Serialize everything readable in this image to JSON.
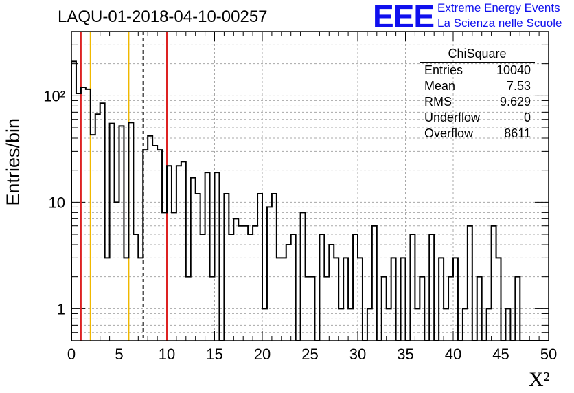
{
  "header": {
    "title": "LAQU-01-2018-04-10-00257",
    "logo_text": "EEE",
    "logo_line1": "Extreme Energy Events",
    "logo_line2": "La Scienza nelle Scuole"
  },
  "stats_box": {
    "name": "ChiSquare",
    "rows": [
      {
        "label": "Entries",
        "value": "10040"
      },
      {
        "label": "Mean",
        "value": "7.53"
      },
      {
        "label": "RMS",
        "value": "9.629"
      },
      {
        "label": "Underflow",
        "value": "0"
      },
      {
        "label": "Overflow",
        "value": "8611"
      }
    ]
  },
  "colors": {
    "histogram": "#000000",
    "red_line": "#dd2222",
    "yellow_line": "#f0b800",
    "dashed_line": "#000000",
    "logo": "#1010ee"
  },
  "chart_data": {
    "type": "bar",
    "histogram": "step",
    "title": "LAQU-01-2018-04-10-00257",
    "xlabel": "X²",
    "ylabel": "Entries/bin",
    "xlim": [
      0,
      50
    ],
    "ylim": [
      0.5,
      400
    ],
    "y_scale": "log",
    "grid": true,
    "bin_width": 0.5,
    "x_ticks": [
      0,
      5,
      10,
      15,
      20,
      25,
      30,
      35,
      40,
      45,
      50
    ],
    "x_tick_labels": [
      "0",
      "5",
      "10",
      "15",
      "20",
      "25",
      "30",
      "35",
      "40",
      "45",
      "50"
    ],
    "y_ticks": [
      1,
      10,
      100
    ],
    "y_tick_labels": [
      "1",
      "10",
      "10²"
    ],
    "values": [
      210,
      105,
      120,
      115,
      43,
      67,
      85,
      3,
      55,
      10,
      52,
      3,
      56,
      5,
      3,
      31,
      42,
      34,
      31,
      8,
      22,
      8,
      22,
      24,
      2,
      17,
      12,
      5,
      19,
      2,
      19,
      0,
      12,
      5,
      7,
      6,
      6,
      5,
      6,
      12,
      1,
      9,
      12,
      3,
      3,
      4,
      5,
      0,
      8,
      2,
      2,
      0,
      5,
      2,
      4,
      3,
      1,
      3,
      1,
      5,
      3,
      0,
      1,
      6,
      0,
      2,
      1,
      3,
      0,
      3,
      0,
      5,
      1,
      2,
      0,
      5,
      0,
      3,
      1,
      2,
      3,
      0,
      1,
      6,
      0,
      2,
      0,
      1,
      6,
      3,
      0,
      1,
      0,
      2,
      0,
      0,
      0,
      0,
      0,
      0
    ],
    "vertical_lines": [
      {
        "x": 1,
        "style": "solid",
        "color": "red"
      },
      {
        "x": 2,
        "style": "solid",
        "color": "yellow"
      },
      {
        "x": 6,
        "style": "solid",
        "color": "yellow"
      },
      {
        "x": 7.53,
        "style": "dashed",
        "color": "black"
      },
      {
        "x": 10,
        "style": "solid",
        "color": "red"
      }
    ]
  }
}
